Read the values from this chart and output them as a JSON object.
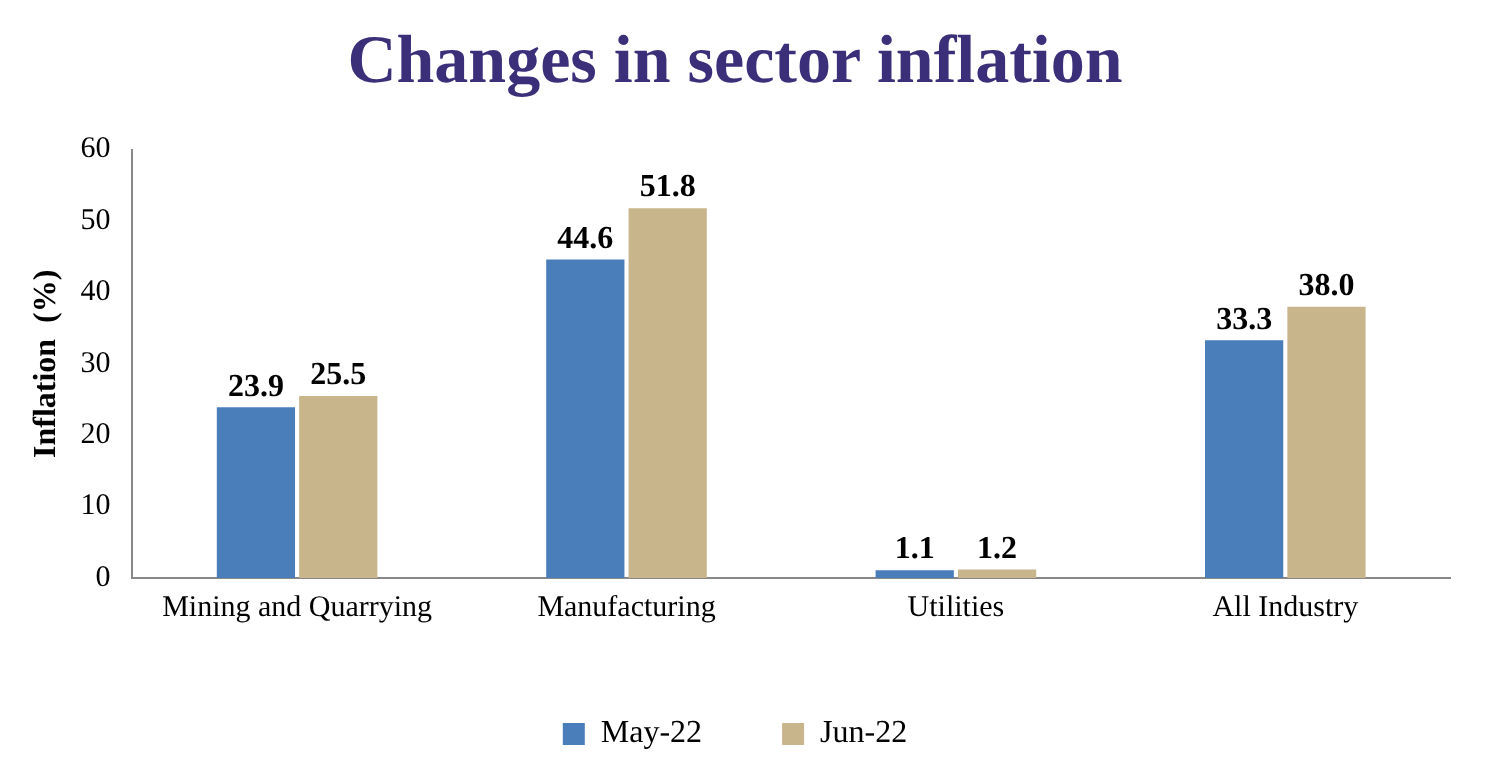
{
  "chart_data": {
    "type": "bar",
    "title": "Changes in sector inflation",
    "ylabel": "Inflation  (%)",
    "categories": [
      "Mining and Quarrying",
      "Manufacturing",
      "Utilities",
      "All Industry"
    ],
    "series": [
      {
        "name": "May-22",
        "color": "#4a7ebb",
        "values": [
          23.9,
          44.6,
          1.1,
          33.3
        ]
      },
      {
        "name": "Jun-22",
        "color": "#c9b58c",
        "values": [
          25.5,
          51.8,
          1.2,
          38.0
        ]
      }
    ],
    "value_labels": [
      [
        "23.9",
        "44.6",
        "1.1",
        "33.3"
      ],
      [
        "25.5",
        "51.8",
        "1.2",
        "38.0"
      ]
    ],
    "ylim": [
      0,
      60
    ],
    "yticks": [
      0,
      10,
      20,
      30,
      40,
      50,
      60
    ],
    "grid": false,
    "legend": "bottom"
  }
}
